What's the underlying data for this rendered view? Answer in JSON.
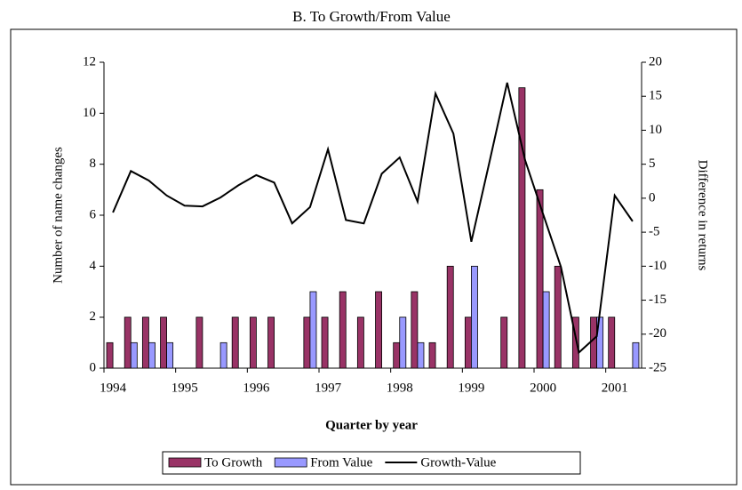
{
  "chart_data": {
    "type": "bar",
    "title": "B. To Growth/From Value",
    "xlabel": "Quarter by year",
    "ylabel": "Number of name changes",
    "y2label": "Difference in returns",
    "categories": [
      "1994",
      null,
      null,
      null,
      "1995",
      null,
      null,
      null,
      "1996",
      null,
      null,
      null,
      "1997",
      null,
      null,
      null,
      "1998",
      null,
      null,
      null,
      "1999",
      null,
      null,
      null,
      "2000",
      null,
      null,
      null,
      "2001",
      null
    ],
    "series": [
      {
        "name": "To Growth",
        "type": "bar",
        "color": "#993366",
        "values": [
          1,
          2,
          2,
          2,
          0,
          2,
          0,
          2,
          2,
          2,
          0,
          2,
          2,
          3,
          2,
          3,
          1,
          3,
          1,
          4,
          2,
          0,
          2,
          11,
          7,
          4,
          2,
          2,
          2,
          0
        ]
      },
      {
        "name": "From Value",
        "type": "bar",
        "color": "#9999ff",
        "values": [
          0,
          1,
          1,
          1,
          0,
          0,
          1,
          0,
          0,
          0,
          0,
          3,
          0,
          0,
          0,
          0,
          2,
          1,
          0,
          0,
          4,
          0,
          0,
          0,
          3,
          0,
          0,
          2,
          0,
          1
        ]
      },
      {
        "name": "Growth-Value",
        "type": "line",
        "color": "#000000",
        "axis": "y2",
        "values": [
          -2.1,
          4.0,
          2.6,
          0.4,
          -1.1,
          -1.2,
          0.1,
          1.9,
          3.4,
          2.3,
          -3.7,
          -1.3,
          7.2,
          -3.2,
          -3.7,
          3.6,
          6.0,
          -0.5,
          15.4,
          9.5,
          -6.4,
          5.2,
          17.0,
          5.6,
          -2.3,
          -10.1,
          -22.7,
          -20.3,
          0.4,
          -3.4
        ]
      }
    ],
    "ylim": [
      0,
      12
    ],
    "yticks": [
      0,
      2,
      4,
      6,
      8,
      10,
      12
    ],
    "y2lim": [
      -25,
      20
    ],
    "y2ticks": [
      -25,
      -20,
      -15,
      -10,
      -5,
      0,
      5,
      10,
      15,
      20
    ],
    "legend": "bottom"
  }
}
